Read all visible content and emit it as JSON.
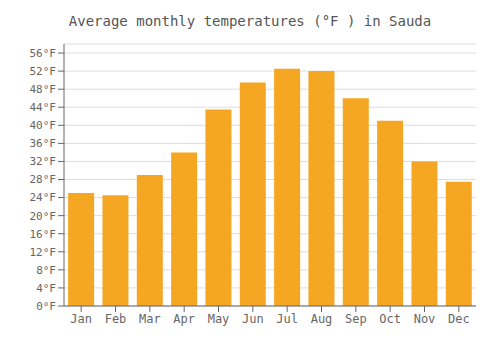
{
  "chart_data": {
    "type": "bar",
    "title": "Average monthly temperatures (°F ) in Sauda",
    "categories": [
      "Jan",
      "Feb",
      "Mar",
      "Apr",
      "May",
      "Jun",
      "Jul",
      "Aug",
      "Sep",
      "Oct",
      "Nov",
      "Dec"
    ],
    "values": [
      25,
      24.5,
      29,
      34,
      43.5,
      49.5,
      52.5,
      52,
      46,
      41,
      32,
      27.5
    ],
    "color": "#F5A623",
    "ylim": [
      0,
      58
    ],
    "yticks": [
      {
        "value": 0,
        "label": "0°F"
      },
      {
        "value": 4,
        "label": "4°F"
      },
      {
        "value": 8,
        "label": "8°F"
      },
      {
        "value": 12,
        "label": "12°F"
      },
      {
        "value": 16,
        "label": "16°F"
      },
      {
        "value": 20,
        "label": "20°F"
      },
      {
        "value": 24,
        "label": "24°F"
      },
      {
        "value": 28,
        "label": "28°F"
      },
      {
        "value": 32,
        "label": "32°F"
      },
      {
        "value": 36,
        "label": "36°F"
      },
      {
        "value": 40,
        "label": "40°F"
      },
      {
        "value": 44,
        "label": "44°F"
      },
      {
        "value": 48,
        "label": "48°F"
      },
      {
        "value": 52,
        "label": "52°F"
      },
      {
        "value": 56,
        "label": "56°F"
      }
    ],
    "grid": true
  }
}
